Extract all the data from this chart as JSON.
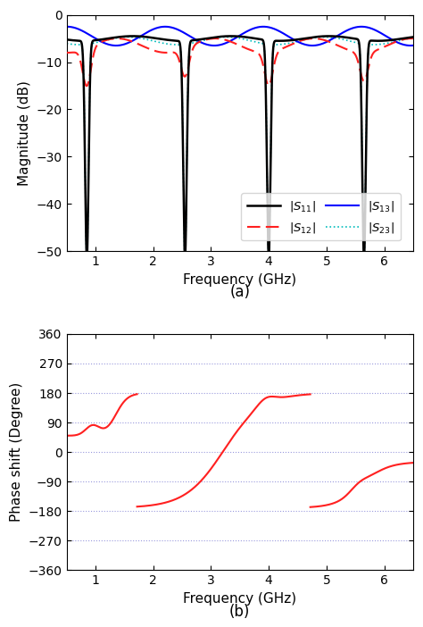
{
  "fig_width": 4.74,
  "fig_height": 7.02,
  "dpi": 100,
  "subplot_a": {
    "xlim": [
      0.5,
      6.5
    ],
    "ylim": [
      -50,
      0
    ],
    "xlabel": "Frequency (GHz)",
    "ylabel": "Magnitude (dB)",
    "xticks": [
      1,
      2,
      3,
      4,
      5,
      6
    ],
    "yticks": [
      0,
      -10,
      -20,
      -30,
      -40,
      -50
    ],
    "label_a": "(a)",
    "notch_freqs": [
      0.85,
      2.55,
      4.0,
      5.65
    ],
    "colors": {
      "S11": "#000000",
      "S12": "#ff2020",
      "S13": "#0000ff",
      "S23": "#00bbbb"
    }
  },
  "subplot_b": {
    "xlim": [
      0.5,
      6.5
    ],
    "ylim": [
      -360,
      360
    ],
    "xlabel": "Frequency (GHz)",
    "ylabel": "Phase shift (Degree)",
    "xticks": [
      1,
      2,
      3,
      4,
      5,
      6
    ],
    "yticks": [
      -360,
      -270,
      -180,
      -90,
      0,
      90,
      180,
      270,
      360
    ],
    "label_b": "(b)",
    "color": "#ff2020",
    "grid_color": "#9999dd",
    "jump1_x": 1.72,
    "jump2_x": 4.72
  }
}
